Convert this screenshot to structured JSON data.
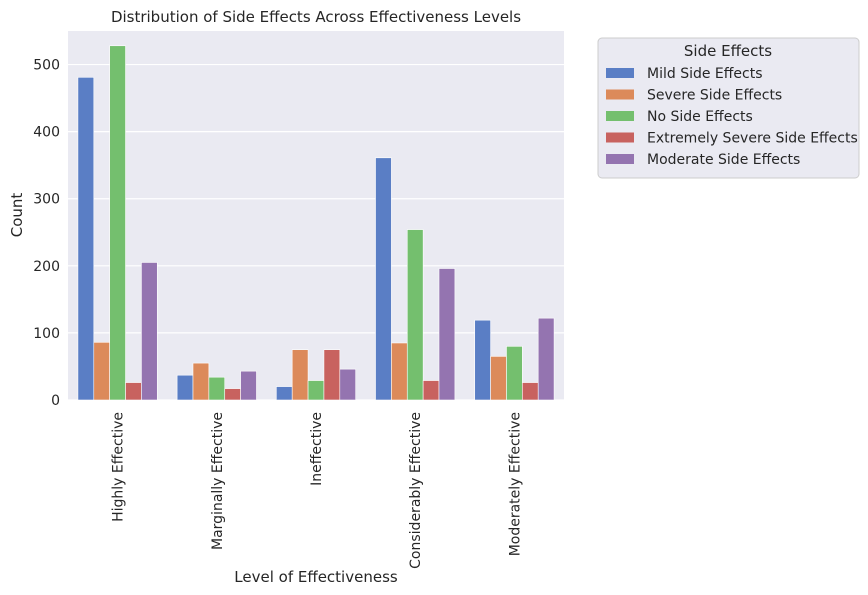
{
  "chart_data": {
    "type": "bar",
    "title": "Distribution of Side Effects Across Effectiveness Levels",
    "xlabel": "Level of Effectiveness",
    "ylabel": "Count",
    "ylim": [
      0,
      550
    ],
    "yticks": [
      0,
      100,
      200,
      300,
      400,
      500
    ],
    "grid": true,
    "legend": {
      "title": "Side Effects",
      "placement": "outside-top-right"
    },
    "categories": [
      "Highly Effective",
      "Marginally Effective",
      "Ineffective",
      "Considerably Effective",
      "Moderately Effective"
    ],
    "series": [
      {
        "name": "Mild Side Effects",
        "color": "#5a7ec5",
        "values": [
          481,
          37,
          20,
          361,
          119
        ]
      },
      {
        "name": "Severe Side Effects",
        "color": "#dc8a5a",
        "values": [
          86,
          55,
          75,
          85,
          65
        ]
      },
      {
        "name": "No Side Effects",
        "color": "#74bf6e",
        "values": [
          528,
          34,
          29,
          254,
          80
        ]
      },
      {
        "name": "Extremely Severe Side Effects",
        "color": "#c8625f",
        "values": [
          26,
          17,
          75,
          29,
          26
        ]
      },
      {
        "name": "Moderate Side Effects",
        "color": "#9474b0",
        "values": [
          205,
          43,
          46,
          196,
          122
        ]
      }
    ]
  }
}
